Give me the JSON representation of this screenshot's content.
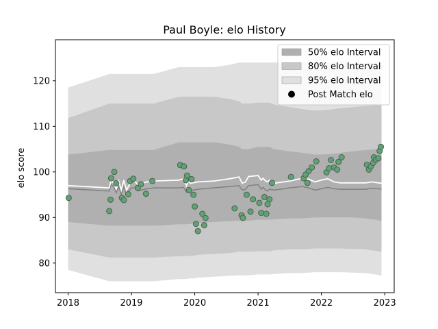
{
  "chart_data": {
    "type": "line",
    "title": "Paul Boyle: elo History",
    "xlabel": "",
    "ylabel": "elo score",
    "xlim": [
      2017.8,
      2023.15
    ],
    "ylim": [
      73.5,
      129
    ],
    "x_ticks": [
      2018,
      2019,
      2020,
      2021,
      2022,
      2023
    ],
    "y_ticks": [
      80,
      90,
      100,
      110,
      120
    ],
    "legend_position": "top-right",
    "colors": {
      "band50": "#b0b0b0",
      "band80": "#c8c8c8",
      "band95": "#e0e0e0",
      "median": "#ffffff",
      "lower": "#808080",
      "point_fill": "#5fa374",
      "point_edge": "#4d5f52"
    },
    "legend": [
      {
        "label": "50% elo Interval",
        "kind": "band50"
      },
      {
        "label": "80% elo Interval",
        "kind": "band80"
      },
      {
        "label": "95% elo Interval",
        "kind": "band95"
      },
      {
        "label": "Post Match elo",
        "kind": "marker"
      }
    ],
    "intervals": {
      "x": [
        2018.0,
        2018.65,
        2018.68,
        2018.72,
        2018.76,
        2018.8,
        2018.84,
        2018.88,
        2018.92,
        2018.96,
        2019.0,
        2019.05,
        2019.1,
        2019.15,
        2019.25,
        2019.35,
        2019.75,
        2019.82,
        2019.87,
        2019.9,
        2019.93,
        2019.97,
        2020.05,
        2020.3,
        2020.55,
        2020.7,
        2020.75,
        2020.8,
        2020.85,
        2021.0,
        2021.05,
        2021.08,
        2021.12,
        2021.15,
        2021.18,
        2021.25,
        2021.5,
        2021.7,
        2021.8,
        2021.9,
        2022.0,
        2022.1,
        2022.2,
        2022.3,
        2022.5,
        2022.7,
        2022.8,
        2022.9,
        2022.95
      ],
      "mid": [
        97.0,
        96.5,
        98.2,
        97.5,
        96.2,
        98.0,
        96.0,
        98.2,
        96.0,
        97.0,
        98.0,
        98.0,
        97.2,
        97.5,
        97.8,
        98.0,
        98.2,
        98.5,
        97.0,
        98.0,
        97.5,
        97.6,
        97.8,
        98.0,
        98.5,
        98.9,
        97.5,
        97.8,
        99.0,
        99.2,
        98.2,
        98.6,
        98.0,
        97.8,
        98.2,
        97.5,
        98.0,
        98.6,
        98.4,
        97.8,
        98.2,
        98.5,
        97.8,
        97.6,
        97.6,
        97.6,
        97.8,
        97.6,
        97.5
      ],
      "lower": [
        96.3,
        95.8,
        97.2,
        96.8,
        95.4,
        96.8,
        95.0,
        96.8,
        95.0,
        95.8,
        96.5,
        96.5,
        95.8,
        96.0,
        96.3,
        96.5,
        96.5,
        96.6,
        95.6,
        96.3,
        95.8,
        96.0,
        96.2,
        96.5,
        96.8,
        97.0,
        96.0,
        96.2,
        97.0,
        97.2,
        96.2,
        96.6,
        96.0,
        95.8,
        96.2,
        96.0,
        96.5,
        96.8,
        96.5,
        96.0,
        96.3,
        96.6,
        96.3,
        96.2,
        96.2,
        96.2,
        96.4,
        96.3,
        96.2
      ],
      "i50_lo": [
        89.0,
        88.2,
        88.2,
        88.2,
        88.2,
        88.2,
        88.2,
        88.2,
        88.2,
        88.2,
        88.2,
        88.2,
        88.2,
        88.2,
        88.2,
        88.2,
        88.5,
        88.5,
        88.5,
        88.6,
        88.6,
        88.6,
        88.8,
        89.0,
        89.2,
        89.3,
        89.3,
        89.3,
        89.3,
        89.5,
        89.5,
        89.5,
        89.5,
        89.5,
        89.5,
        89.6,
        89.8,
        89.8,
        89.9,
        90.0,
        90.0,
        90.0,
        90.0,
        90.0,
        90.0,
        89.8,
        89.6,
        89.4,
        89.2
      ],
      "i50_hi": [
        103.8,
        104.8,
        104.8,
        104.8,
        104.8,
        104.8,
        104.8,
        104.8,
        104.8,
        104.8,
        104.8,
        104.8,
        104.8,
        104.8,
        104.8,
        104.8,
        106.5,
        106.5,
        106.5,
        106.5,
        106.5,
        106.5,
        106.5,
        106.5,
        106.0,
        105.5,
        105.0,
        105.0,
        105.0,
        105.5,
        105.5,
        105.5,
        105.5,
        105.5,
        105.5,
        105.0,
        104.5,
        104.2,
        104.0,
        103.8,
        103.8,
        103.9,
        104.0,
        104.2,
        104.5,
        104.8,
        104.9,
        105.0,
        105.0
      ],
      "i80_lo": [
        83.0,
        81.2,
        81.2,
        81.2,
        81.2,
        81.2,
        81.2,
        81.2,
        81.2,
        81.2,
        81.2,
        81.2,
        81.2,
        81.2,
        81.2,
        81.2,
        81.5,
        81.5,
        81.5,
        81.6,
        81.6,
        81.6,
        81.8,
        82.0,
        82.2,
        82.5,
        82.5,
        82.5,
        82.5,
        82.6,
        82.6,
        82.6,
        82.6,
        82.6,
        82.6,
        82.8,
        83.0,
        83.0,
        83.1,
        83.2,
        83.2,
        83.2,
        83.2,
        83.2,
        83.1,
        83.0,
        82.8,
        82.6,
        82.5
      ],
      "i80_hi": [
        111.8,
        115.0,
        115.0,
        115.0,
        115.0,
        115.0,
        115.0,
        115.0,
        115.0,
        115.0,
        115.0,
        115.0,
        115.0,
        115.0,
        115.0,
        115.0,
        116.5,
        116.5,
        116.5,
        116.5,
        116.5,
        116.5,
        116.5,
        116.5,
        116.0,
        115.5,
        115.0,
        115.0,
        115.0,
        115.2,
        115.2,
        115.2,
        115.2,
        115.2,
        115.2,
        114.8,
        114.2,
        113.8,
        113.6,
        113.5,
        113.5,
        113.6,
        113.8,
        114.0,
        114.2,
        114.5,
        114.6,
        114.7,
        114.8
      ],
      "i95_lo": [
        78.5,
        76.0,
        76.0,
        76.0,
        76.0,
        76.0,
        76.0,
        76.0,
        76.0,
        76.0,
        76.0,
        76.0,
        76.0,
        76.0,
        76.0,
        76.0,
        76.5,
        76.5,
        76.5,
        76.6,
        76.6,
        76.6,
        76.8,
        77.0,
        77.2,
        77.3,
        77.3,
        77.3,
        77.3,
        77.5,
        77.5,
        77.5,
        77.5,
        77.5,
        77.5,
        77.6,
        77.8,
        77.8,
        77.9,
        78.0,
        78.0,
        78.0,
        78.0,
        78.0,
        77.9,
        77.8,
        77.6,
        77.4,
        77.2
      ],
      "i95_hi": [
        118.5,
        121.5,
        121.5,
        121.5,
        121.5,
        121.5,
        121.5,
        121.5,
        121.5,
        121.5,
        121.5,
        121.5,
        121.5,
        121.5,
        121.5,
        121.5,
        123.0,
        123.0,
        123.0,
        123.0,
        123.0,
        123.0,
        123.0,
        123.0,
        123.5,
        124.0,
        124.0,
        124.0,
        124.0,
        124.0,
        124.0,
        124.0,
        124.0,
        124.0,
        124.0,
        124.0,
        124.0,
        124.0,
        124.0,
        124.0,
        124.0,
        124.0,
        124.0,
        124.0,
        124.0,
        124.0,
        124.0,
        124.0,
        124.0
      ]
    },
    "points": [
      [
        2018.01,
        94.3
      ],
      [
        2018.65,
        91.4
      ],
      [
        2018.67,
        93.9
      ],
      [
        2018.68,
        98.6
      ],
      [
        2018.73,
        100.0
      ],
      [
        2018.76,
        97.5
      ],
      [
        2018.85,
        94.3
      ],
      [
        2018.88,
        93.8
      ],
      [
        2018.95,
        95.1
      ],
      [
        2018.98,
        98.0
      ],
      [
        2019.03,
        98.5
      ],
      [
        2019.1,
        96.5
      ],
      [
        2019.15,
        97.3
      ],
      [
        2019.23,
        95.2
      ],
      [
        2019.33,
        98.0
      ],
      [
        2019.77,
        101.5
      ],
      [
        2019.83,
        101.2
      ],
      [
        2019.86,
        98.2
      ],
      [
        2019.88,
        99.2
      ],
      [
        2019.91,
        96.0
      ],
      [
        2019.95,
        98.4
      ],
      [
        2019.98,
        95.0
      ],
      [
        2020.0,
        92.4
      ],
      [
        2020.02,
        88.6
      ],
      [
        2020.05,
        87.0
      ],
      [
        2020.12,
        90.8
      ],
      [
        2020.15,
        88.3
      ],
      [
        2020.17,
        89.9
      ],
      [
        2020.63,
        92.0
      ],
      [
        2020.74,
        90.5
      ],
      [
        2020.76,
        89.9
      ],
      [
        2020.82,
        95.0
      ],
      [
        2020.88,
        91.3
      ],
      [
        2020.92,
        94.0
      ],
      [
        2021.02,
        93.2
      ],
      [
        2021.05,
        91.0
      ],
      [
        2021.1,
        94.5
      ],
      [
        2021.13,
        90.8
      ],
      [
        2021.15,
        92.9
      ],
      [
        2021.18,
        94.0
      ],
      [
        2021.22,
        97.6
      ],
      [
        2021.52,
        98.9
      ],
      [
        2021.72,
        98.6
      ],
      [
        2021.75,
        99.4
      ],
      [
        2021.78,
        97.6
      ],
      [
        2021.8,
        100.2
      ],
      [
        2021.85,
        101.0
      ],
      [
        2021.92,
        102.3
      ],
      [
        2022.08,
        99.9
      ],
      [
        2022.12,
        100.8
      ],
      [
        2022.15,
        102.6
      ],
      [
        2022.2,
        101.0
      ],
      [
        2022.25,
        100.5
      ],
      [
        2022.27,
        102.2
      ],
      [
        2022.32,
        103.2
      ],
      [
        2022.72,
        101.6
      ],
      [
        2022.75,
        100.5
      ],
      [
        2022.78,
        101.2
      ],
      [
        2022.82,
        102.0
      ],
      [
        2022.83,
        103.2
      ],
      [
        2022.86,
        102.7
      ],
      [
        2022.9,
        103.0
      ],
      [
        2022.92,
        104.6
      ],
      [
        2022.94,
        105.5
      ]
    ]
  }
}
